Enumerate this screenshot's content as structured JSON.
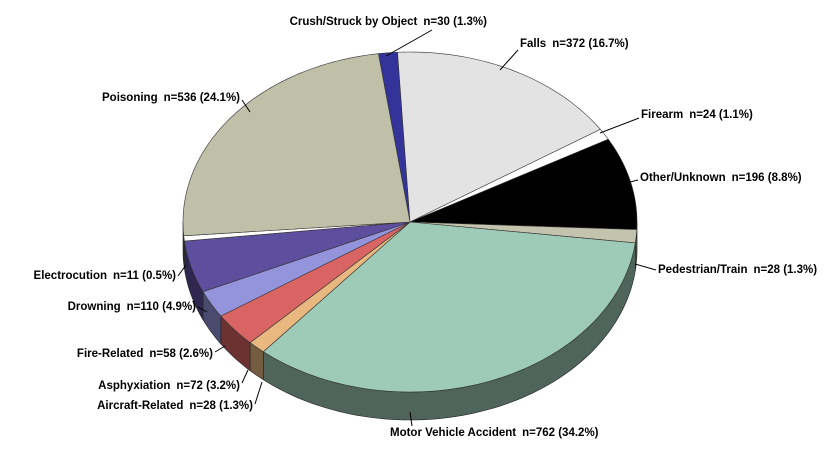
{
  "chart_data": {
    "type": "pie",
    "categories": [
      "Crush/Struck by Object",
      "Falls",
      "Firearm",
      "Other/Unknown",
      "Pedestrian/Train",
      "Motor Vehicle Accident",
      "Aircraft-Related",
      "Asphyxiation",
      "Fire-Related",
      "Drowning",
      "Electrocution",
      "Poisoning"
    ],
    "values": [
      30,
      372,
      24,
      196,
      28,
      762,
      28,
      72,
      58,
      110,
      11,
      536
    ],
    "value_labels": [
      "n=30  (1.3%)",
      "n=372  (16.7%)",
      "n=24  (1.1%)",
      "n=196  (8.8%)",
      "n=28  (1.3%)",
      "n=762  (34.2%)",
      "n=28  (1.3%)",
      "n=72  (3.2%)",
      "n=58  (2.6%)",
      "n=110  (4.9%)",
      "n=11  (0.5%)",
      "n=536  (24.1%)"
    ],
    "colors": [
      "#333399",
      "#e3e3e3",
      "#ffffff",
      "#000000",
      "#c4c3ad",
      "#9ecab8",
      "#e8b880",
      "#d86464",
      "#9494dc",
      "#5e4e9e",
      "#ffffff",
      "#c0c0a8"
    ]
  }
}
